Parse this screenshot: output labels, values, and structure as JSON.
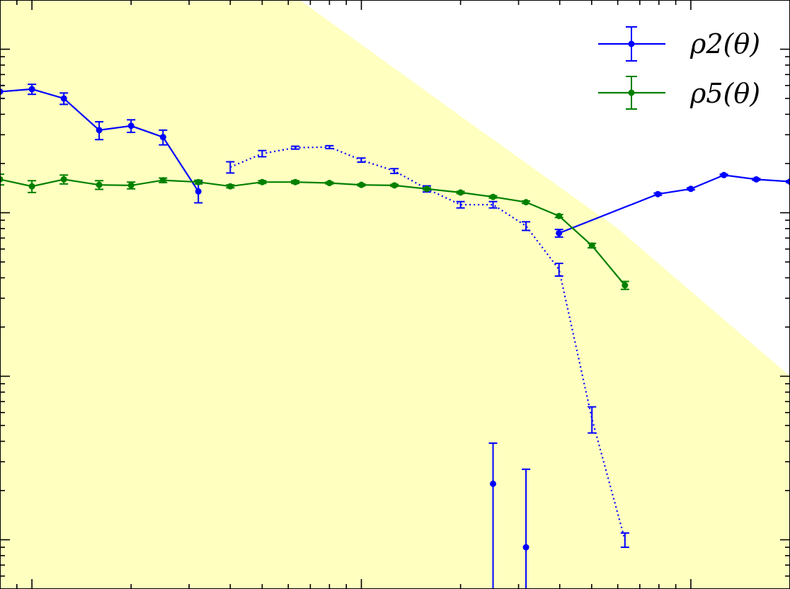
{
  "chart_data": {
    "type": "line",
    "title": "",
    "xlabel": "",
    "ylabel": "",
    "x_scale": "log",
    "y_scale": "log",
    "xlim": [
      0.8,
      200
    ],
    "ylim": [
      5e-07,
      0.002
    ],
    "grid": false,
    "legend_position": "top-right",
    "shaded_region": {
      "color": "#ffffc0",
      "upper_bound": [
        [
          0.8,
          0.04
        ],
        [
          6.5,
          0.002
        ],
        [
          20,
          0.00039
        ],
        [
          60,
          8e-05
        ],
        [
          200,
          1e-05
        ]
      ]
    },
    "series": [
      {
        "name": "ρ2(θ)",
        "color": "#0000ff",
        "positive": {
          "style": "solid",
          "x": [
            0.8,
            1.0,
            1.25,
            1.6,
            2.0,
            2.5,
            3.2
          ],
          "y": [
            0.00055,
            0.00057,
            0.0005,
            0.00032,
            0.00034,
            0.00029,
            0.000135
          ],
          "yerr": [
            5e-05,
            4e-05,
            4e-05,
            4e-05,
            3e-05,
            3e-05,
            2e-05
          ]
        },
        "negative": {
          "style": "dotted",
          "x": [
            4.0,
            5.0,
            6.3,
            8.0,
            10.0,
            12.6,
            15.8,
            20.0,
            25.1,
            31.6,
            39.8,
            50.1,
            63.1
          ],
          "y": [
            0.00019,
            0.00023,
            0.00025,
            0.000252,
            0.00021,
            0.00018,
            0.00014,
            0.000112,
            0.000112,
            8.3e-05,
            4.5e-05,
            5.5e-06,
            1e-06
          ],
          "yerr": [
            1.5e-05,
            1e-05,
            5e-06,
            5e-06,
            6e-06,
            6e-06,
            6e-06,
            5e-06,
            5e-06,
            5e-06,
            4e-06,
            1e-06,
            1e-07
          ]
        },
        "positive_tail": {
          "style": "solid",
          "x": [
            39.8,
            79.4,
            100,
            126,
            158,
            200
          ],
          "y": [
            7.5e-05,
            0.00013,
            0.00014,
            0.00017,
            0.00016,
            0.000155
          ],
          "yerr": [
            4e-06,
            2e-06,
            2e-06,
            2e-06,
            2e-06,
            2e-06
          ]
        },
        "isolated_points": {
          "x": [
            25.1,
            31.6
          ],
          "y": [
            2.2e-06,
            9e-07
          ],
          "yerr": [
            1.7e-06,
            1.8e-06
          ]
        }
      },
      {
        "name": "ρ5(θ)",
        "color": "#008000",
        "positive": {
          "style": "solid",
          "x": [
            0.8,
            1.0,
            1.25,
            1.6,
            2.0,
            2.5,
            3.2,
            4.0,
            5.0,
            6.3,
            8.0,
            10.0,
            12.6,
            15.8,
            20.0,
            25.1,
            31.6,
            39.8,
            50.1,
            63.1
          ],
          "y": [
            0.00016,
            0.000145,
            0.00016,
            0.000148,
            0.000147,
            0.000158,
            0.000154,
            0.000145,
            0.000154,
            0.000154,
            0.000152,
            0.000148,
            0.000147,
            0.00014,
            0.000133,
            0.000125,
            0.000116,
            9.55e-05,
            6.3e-05,
            3.6e-05
          ],
          "yerr": [
            1.2e-05,
            1.2e-05,
            1e-05,
            9e-06,
            7e-06,
            5e-06,
            4e-06,
            3e-06,
            3e-06,
            3e-06,
            2e-06,
            2e-06,
            2e-06,
            2e-06,
            2e-06,
            2e-06,
            2e-06,
            2e-06,
            2e-06,
            2e-06
          ]
        }
      }
    ]
  }
}
